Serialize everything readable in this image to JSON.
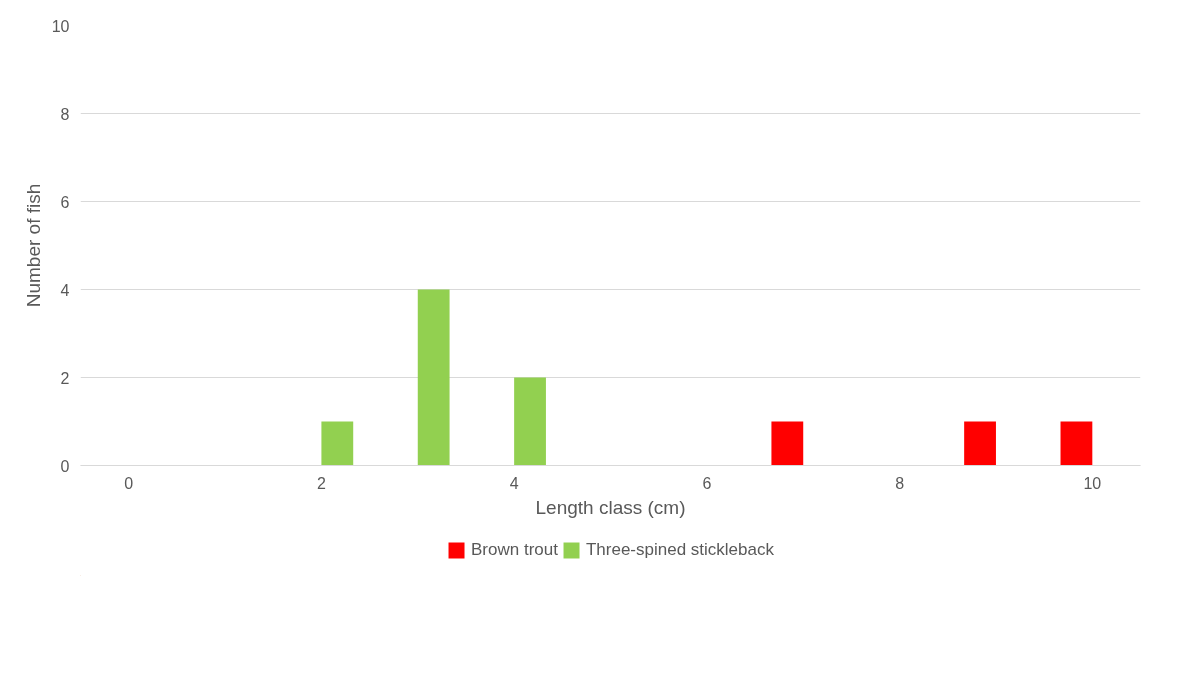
{
  "chart_data": {
    "type": "bar",
    "xlabel": "Length class (cm)",
    "ylabel": "Number of fish",
    "categories": [
      "0",
      null,
      "2",
      null,
      "4",
      null,
      "6",
      null,
      "8",
      null,
      "10"
    ],
    "series": [
      {
        "name": "Brown trout",
        "color": "#ff0000",
        "values": [
          null,
          null,
          null,
          null,
          null,
          null,
          null,
          1,
          null,
          1,
          1
        ]
      },
      {
        "name": "Three-spined stickleback",
        "color": "#92d050",
        "values": [
          null,
          null,
          1,
          4,
          2,
          null,
          null,
          null,
          null,
          null,
          null
        ]
      }
    ],
    "ylim": [
      0,
      10
    ],
    "yticks": [
      0,
      2,
      4,
      6,
      8,
      10
    ],
    "grid": "y",
    "legend": "bottom"
  }
}
